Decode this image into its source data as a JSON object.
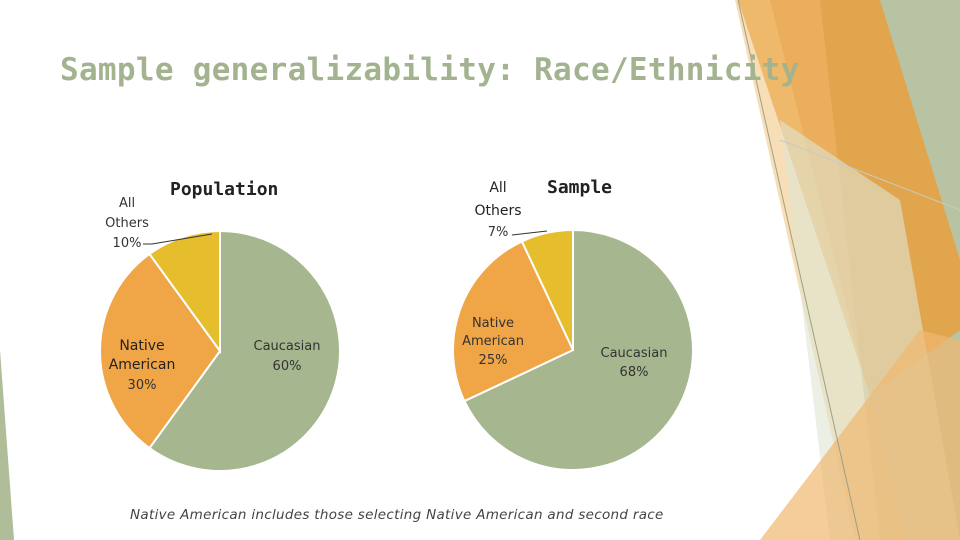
{
  "slide": {
    "title": "Sample generalizability: Race/Ethnicity",
    "footnote": "Native American includes those selecting Native American and second race"
  },
  "colors": {
    "caucasian": "#a6b68f",
    "native_american": "#f0a546",
    "all_others": "#e6bd2c",
    "title": "#a3b38f",
    "accent_orange": "#e8a040",
    "accent_sage": "#b0bd99"
  },
  "chart_data": [
    {
      "type": "pie",
      "title": "Population",
      "slices": [
        {
          "label": "Caucasian",
          "value": 60,
          "value_label": "60%"
        },
        {
          "label": "Native American",
          "value": 30,
          "value_label": "30%"
        },
        {
          "label": "All Others",
          "value": 10,
          "value_label": "10%"
        }
      ]
    },
    {
      "type": "pie",
      "title": "Sample",
      "slices": [
        {
          "label": "Caucasian",
          "value": 68,
          "value_label": "68%"
        },
        {
          "label": "Native American",
          "value": 25,
          "value_label": "25%"
        },
        {
          "label": "All Others",
          "value": 7,
          "value_label": "7%"
        }
      ]
    }
  ]
}
